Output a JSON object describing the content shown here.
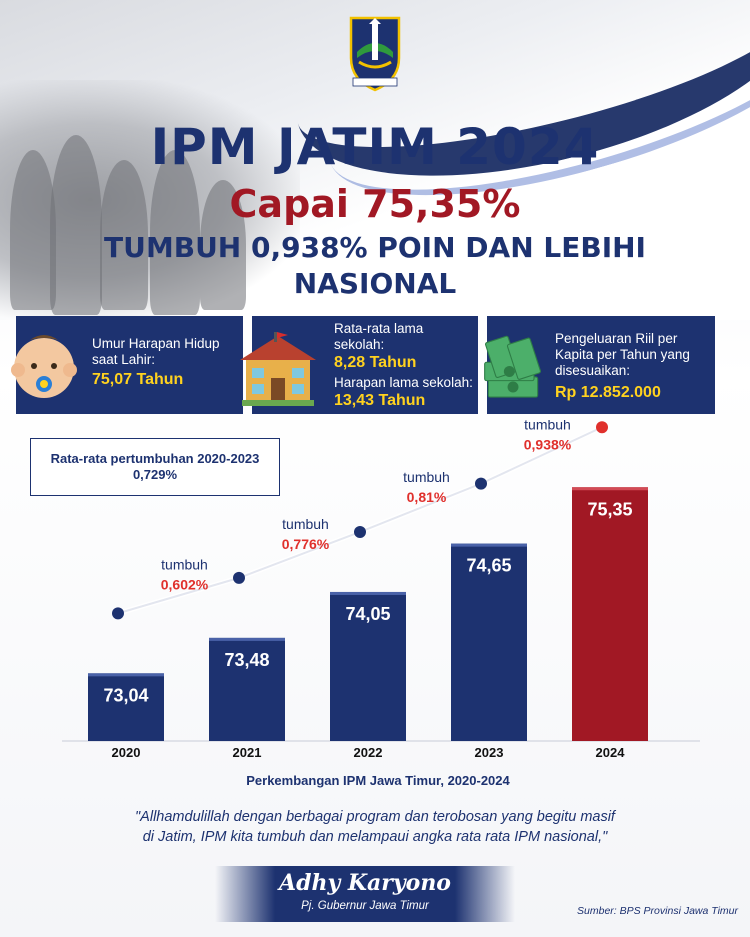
{
  "header": {
    "title": "IPM JATIM 2024",
    "subtitle": "Capai 75,35%",
    "tagline": "TUMBUH 0,938% POIN DAN LEBIHI NASIONAL"
  },
  "logo": {
    "icon": "jatim-coat-of-arms-icon",
    "motto": "JER BASUKI MAWA BEYA"
  },
  "info_cards": [
    {
      "icon": "baby-face-icon",
      "label": "Umur Harapan Hidup saat Lahir:",
      "value": "75,07 Tahun"
    },
    {
      "icon": "school-building-icon",
      "label": "Rata-rata lama sekolah:",
      "value": "8,28 Tahun",
      "label2": "Harapan lama sekolah:",
      "value2": "13,43 Tahun"
    },
    {
      "icon": "money-stack-icon",
      "label": "Pengeluaran Riil per Kapita per Tahun yang disesuaikan:",
      "value": "Rp 12.852.000"
    }
  ],
  "average_box": {
    "label": "Rata-rata pertumbuhan 2020-2023",
    "value": "0,729%"
  },
  "chart_data": {
    "type": "bar",
    "categories": [
      "2020",
      "2021",
      "2022",
      "2023",
      "2024"
    ],
    "values": [
      73.04,
      73.48,
      74.05,
      74.65,
      75.35
    ],
    "value_labels": [
      "73,04",
      "73,48",
      "74,05",
      "74,65",
      "75,35"
    ],
    "growth": [
      {
        "between": [
          "2020",
          "2021"
        ],
        "label": "tumbuh",
        "value": "0,602%"
      },
      {
        "between": [
          "2021",
          "2022"
        ],
        "label": "tumbuh",
        "value": "0,776%"
      },
      {
        "between": [
          "2022",
          "2023"
        ],
        "label": "tumbuh",
        "value": "0,81%"
      },
      {
        "between": [
          "2023",
          "2024"
        ],
        "label": "tumbuh",
        "value": "0,938%"
      }
    ],
    "colors": {
      "bar": "#1d3270",
      "highlight": "#a11824",
      "growth_value": "#e0302c",
      "highlight_dot": "#e0302c"
    },
    "xlabel": "Perkembangan IPM Jawa Timur,  2020-2024",
    "ylim": [
      72.2,
      75.8
    ],
    "grid": false,
    "legend": "none"
  },
  "quote": {
    "line1": "\"Allhamdulillah dengan berbagai program dan terobosan yang begitu masif",
    "line2": "di Jatim, IPM kita tumbuh dan melampaui angka rata rata IPM nasional,\""
  },
  "signature": {
    "name": "Adhy Karyono",
    "role": "Pj. Gubernur Jawa Timur"
  },
  "source": "Sumber: BPS Provinsi Jawa Timur",
  "colors": {
    "navy": "#1d3270",
    "red": "#a11824",
    "yellow": "#ffd21f"
  }
}
